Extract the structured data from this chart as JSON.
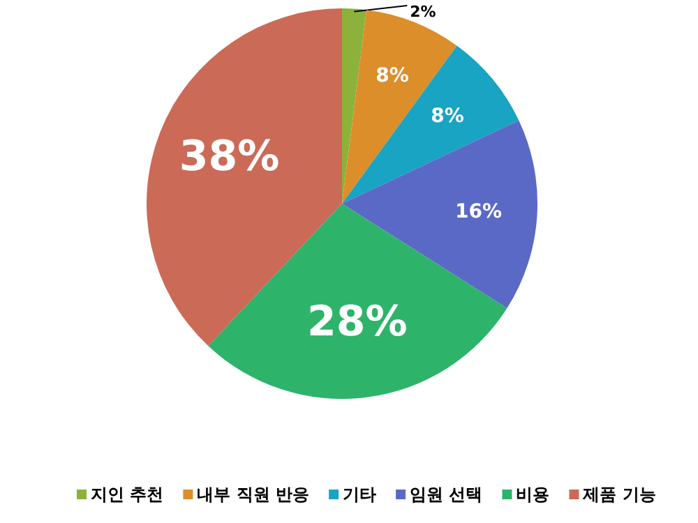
{
  "chart_data": {
    "type": "pie",
    "categories": [
      "지인 추천",
      "내부 직원 반응",
      "기타",
      "임원 선택",
      "비용",
      "제품 기능"
    ],
    "values": [
      2,
      8,
      8,
      16,
      28,
      38
    ],
    "colors": [
      "#8cb23c",
      "#dc8e2a",
      "#18a4c2",
      "#5b69c6",
      "#2eb36a",
      "#cb6a57"
    ],
    "value_labels": [
      "2%",
      "8%",
      "8%",
      "16%",
      "28%",
      "38%"
    ],
    "legend": "bottom"
  }
}
